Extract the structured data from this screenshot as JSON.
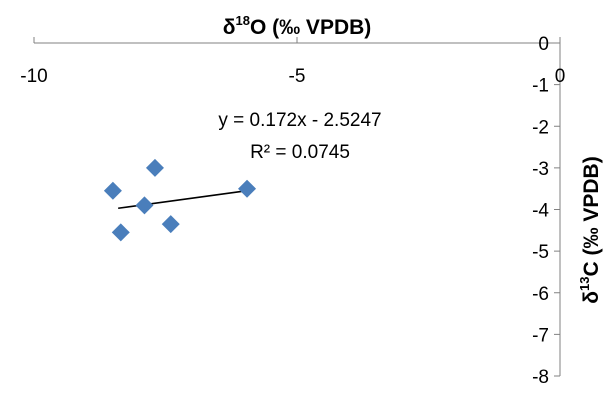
{
  "chart_data": {
    "type": "scatter",
    "x_axis": {
      "title": "δ18O (‰ VPDB)",
      "title_parts": [
        "δ",
        "18",
        "O (‰ VPDB)"
      ],
      "position": "top",
      "range": [
        -10,
        0
      ],
      "ticks": [
        -10,
        -5,
        0
      ],
      "tick_labels": [
        "-10",
        "-5",
        "0"
      ]
    },
    "y_axis": {
      "title": "δ13C (‰ VPDB)",
      "title_parts": [
        "δ",
        "13",
        "C (‰ VPDB)"
      ],
      "position": "right",
      "range": [
        -8,
        0
      ],
      "ticks": [
        0,
        -1,
        -2,
        -3,
        -4,
        -5,
        -6,
        -7,
        -8
      ],
      "tick_labels": [
        "0",
        "-1",
        "-2",
        "-3",
        "-4",
        "-5",
        "-6",
        "-7",
        "-8"
      ]
    },
    "points": [
      {
        "x": -7.7,
        "y": -3.0
      },
      {
        "x": -8.5,
        "y": -3.55
      },
      {
        "x": -7.9,
        "y": -3.9
      },
      {
        "x": -8.35,
        "y": -4.55
      },
      {
        "x": -7.4,
        "y": -4.35
      },
      {
        "x": -5.95,
        "y": -3.5
      }
    ],
    "trendline": {
      "slope": 0.172,
      "intercept": -2.5247,
      "x_range": [
        -8.4,
        -5.95
      ]
    },
    "annotations": {
      "equation": "y = 0.172x - 2.5247",
      "r_squared": "R² = 0.0745"
    },
    "grid": false,
    "legend": "none",
    "colors": {
      "marker": "#4A7EBB",
      "trendline": "#000000",
      "axis": "#808080"
    }
  }
}
